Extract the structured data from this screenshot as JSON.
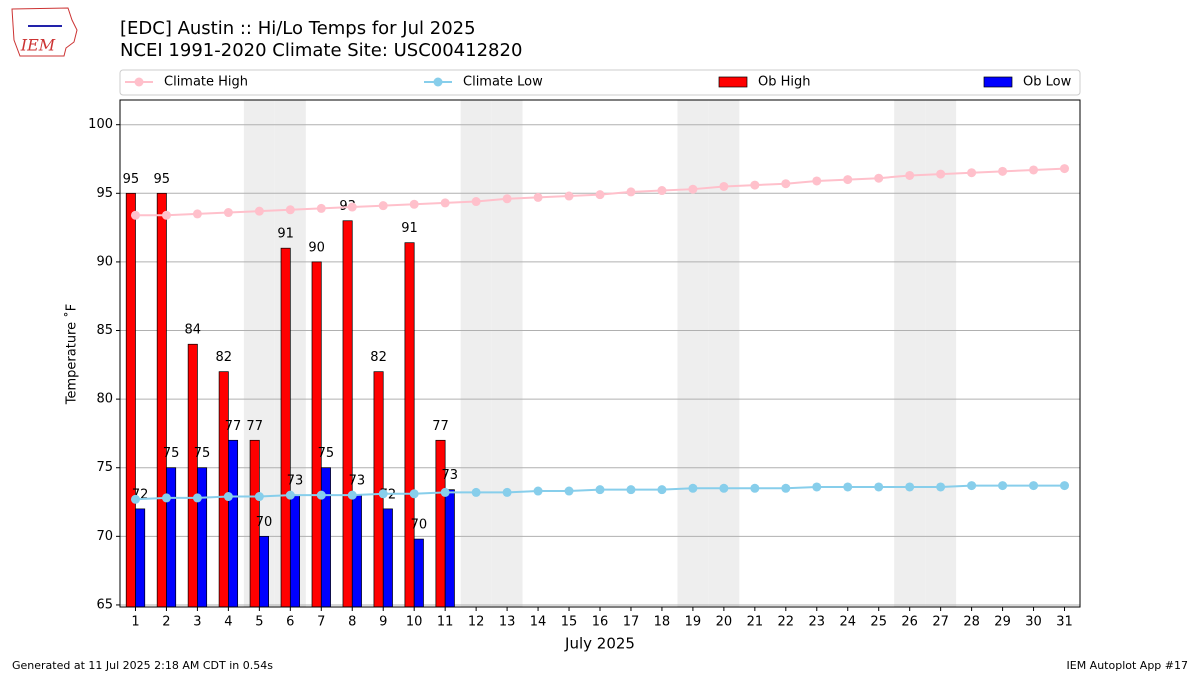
{
  "logo": "IEM",
  "chart_data": {
    "type": "bar-line",
    "title": "[EDC] Austin :: Hi/Lo Temps for Jul 2025",
    "subtitle": "NCEI 1991-2020 Climate Site: USC00412820",
    "y_label": "Temperature ˚F",
    "x_label": "July 2025",
    "x": [
      1,
      2,
      3,
      4,
      5,
      6,
      7,
      8,
      9,
      10,
      11,
      12,
      13,
      14,
      15,
      16,
      17,
      18,
      19,
      20,
      21,
      22,
      23,
      24,
      25,
      26,
      27,
      28,
      29,
      30,
      31
    ],
    "xlim": [
      0.5,
      31.5
    ],
    "xticks": [
      1,
      2,
      3,
      4,
      5,
      6,
      7,
      8,
      9,
      10,
      11,
      12,
      13,
      14,
      15,
      16,
      17,
      18,
      19,
      20,
      21,
      22,
      23,
      24,
      25,
      26,
      27,
      28,
      29,
      30,
      31
    ],
    "ylim": [
      64.85,
      101.8
    ],
    "yticks": [
      65,
      70,
      75,
      80,
      85,
      90,
      95,
      100
    ],
    "grid": true,
    "weekend_days": [
      5,
      6,
      12,
      13,
      19,
      20,
      26,
      27
    ],
    "series": [
      {
        "name": "Climate High",
        "kind": "line",
        "color": "#ffc0cb",
        "values": [
          93.4,
          93.4,
          93.5,
          93.6,
          93.7,
          93.8,
          93.9,
          94.0,
          94.1,
          94.2,
          94.3,
          94.4,
          94.6,
          94.7,
          94.8,
          94.9,
          95.1,
          95.2,
          95.3,
          95.5,
          95.6,
          95.7,
          95.9,
          96.0,
          96.1,
          96.3,
          96.4,
          96.5,
          96.6,
          96.7,
          96.8
        ]
      },
      {
        "name": "Climate Low",
        "kind": "line",
        "color": "#87ceeb",
        "values": [
          72.7,
          72.8,
          72.8,
          72.9,
          72.9,
          73.0,
          73.0,
          73.0,
          73.1,
          73.1,
          73.2,
          73.2,
          73.2,
          73.3,
          73.3,
          73.4,
          73.4,
          73.4,
          73.5,
          73.5,
          73.5,
          73.5,
          73.6,
          73.6,
          73.6,
          73.6,
          73.6,
          73.7,
          73.7,
          73.7,
          73.7
        ]
      },
      {
        "name": "Ob High",
        "kind": "bar",
        "color": "#ff0000",
        "values": [
          95,
          95,
          84,
          82,
          77,
          91,
          90,
          93,
          82,
          91.4,
          77,
          null,
          null,
          null,
          null,
          null,
          null,
          null,
          null,
          null,
          null,
          null,
          null,
          null,
          null,
          null,
          null,
          null,
          null,
          null,
          null
        ],
        "value_labels": [
          "95",
          "95",
          "84",
          "82",
          "77",
          "91",
          "90",
          "93",
          "82",
          "91",
          "77",
          null,
          null,
          null,
          null,
          null,
          null,
          null,
          null,
          null,
          null,
          null,
          null,
          null,
          null,
          null,
          null,
          null,
          null,
          null,
          null
        ]
      },
      {
        "name": "Ob Low",
        "kind": "bar",
        "color": "#0000ff",
        "values": [
          72,
          75,
          75,
          77,
          70,
          73,
          75,
          73,
          72,
          69.8,
          73.4,
          null,
          null,
          null,
          null,
          null,
          null,
          null,
          null,
          null,
          null,
          null,
          null,
          null,
          null,
          null,
          null,
          null,
          null,
          null,
          null
        ],
        "value_labels": [
          "72",
          "75",
          "75",
          "77",
          "70",
          "73",
          "75",
          "73",
          "72",
          "70",
          "73",
          null,
          null,
          null,
          null,
          null,
          null,
          null,
          null,
          null,
          null,
          null,
          null,
          null,
          null,
          null,
          null,
          null,
          null,
          null,
          null
        ]
      }
    ],
    "footer_left": "Generated at 11 Jul 2025 2:18 AM CDT in 0.54s",
    "footer_right": "IEM Autoplot App #17"
  }
}
